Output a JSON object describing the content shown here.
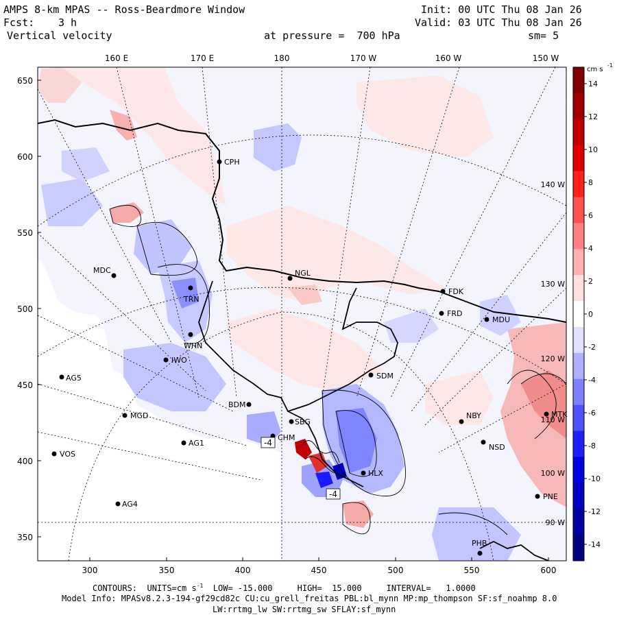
{
  "header": {
    "title": "AMPS 8-km MPAS -- Ross-Beardmore Window",
    "fcst_label": "Fcst:",
    "fcst_value": "3 h",
    "variable": "Vertical velocity",
    "init": "Init: 00 UTC Thu 08 Jan 26",
    "valid": "Valid: 03 UTC Thu 08 Jan 26",
    "level": "at pressure =  700 hPa",
    "smoothing": "sm= 5"
  },
  "axes": {
    "top_labels": [
      "160 E",
      "170 E",
      "180",
      "170 W",
      "160 W",
      "150 W"
    ],
    "left_ticks": [
      "650",
      "600",
      "550",
      "500",
      "450",
      "400",
      "350"
    ],
    "bottom_ticks": [
      "300",
      "350",
      "400",
      "450",
      "500",
      "550",
      "600"
    ],
    "right_lon_labels": [
      "140 W",
      "130 W",
      "120 W",
      "110 W",
      "100 W",
      "90 W"
    ]
  },
  "colorbar": {
    "units": "cm s",
    "units_exp": "-1",
    "tick_labels": [
      "14",
      "12",
      "10",
      "8",
      "6",
      "4",
      "2",
      "0",
      "-2",
      "-4",
      "-6",
      "-8",
      "-10",
      "-12",
      "-14"
    ],
    "colors": [
      "#800000",
      "#a00000",
      "#c00000",
      "#e00000",
      "#ff2020",
      "#ff5050",
      "#ff8080",
      "#ffb0b0",
      "#ffe0e0",
      "#ffffff",
      "#e0e0ff",
      "#b0b0ff",
      "#8080ff",
      "#5050ff",
      "#2020ff",
      "#0000e0",
      "#0000c0",
      "#0000a0",
      "#000080"
    ]
  },
  "stations": [
    {
      "name": "CPH"
    },
    {
      "name": "MDC"
    },
    {
      "name": "NGL"
    },
    {
      "name": "FDK"
    },
    {
      "name": "FRD"
    },
    {
      "name": "MDU"
    },
    {
      "name": "TRN"
    },
    {
      "name": "WHN"
    },
    {
      "name": "IWO"
    },
    {
      "name": "AG5"
    },
    {
      "name": "SDM"
    },
    {
      "name": "BDM"
    },
    {
      "name": "MGD"
    },
    {
      "name": "SBG"
    },
    {
      "name": "CHM"
    },
    {
      "name": "AG1"
    },
    {
      "name": "NBY"
    },
    {
      "name": "MTK"
    },
    {
      "name": "VOS"
    },
    {
      "name": "NSD"
    },
    {
      "name": "HLX"
    },
    {
      "name": "AG4"
    },
    {
      "name": "PNE"
    },
    {
      "name": "PHB"
    }
  ],
  "map_labels": [
    "-4",
    "-4"
  ],
  "footer": {
    "contours": "CONTOURS:  UNITS=cm s",
    "contours_exp": "-1",
    "contours_rest": "  LOW= -15.000     HIGH=  15.000     INTERVAL=   1.0000",
    "model_info": "Model Info: MPASv8.2.3-194-gf29cd82c CU:cu_grell_freitas PBL:bl_mynn MP:mp_thompson SF:sf_noahmp 8.0",
    "physics": "LW:rrtmg_lw SW:rrtmg_sw SFLAY:sf_mynn"
  }
}
